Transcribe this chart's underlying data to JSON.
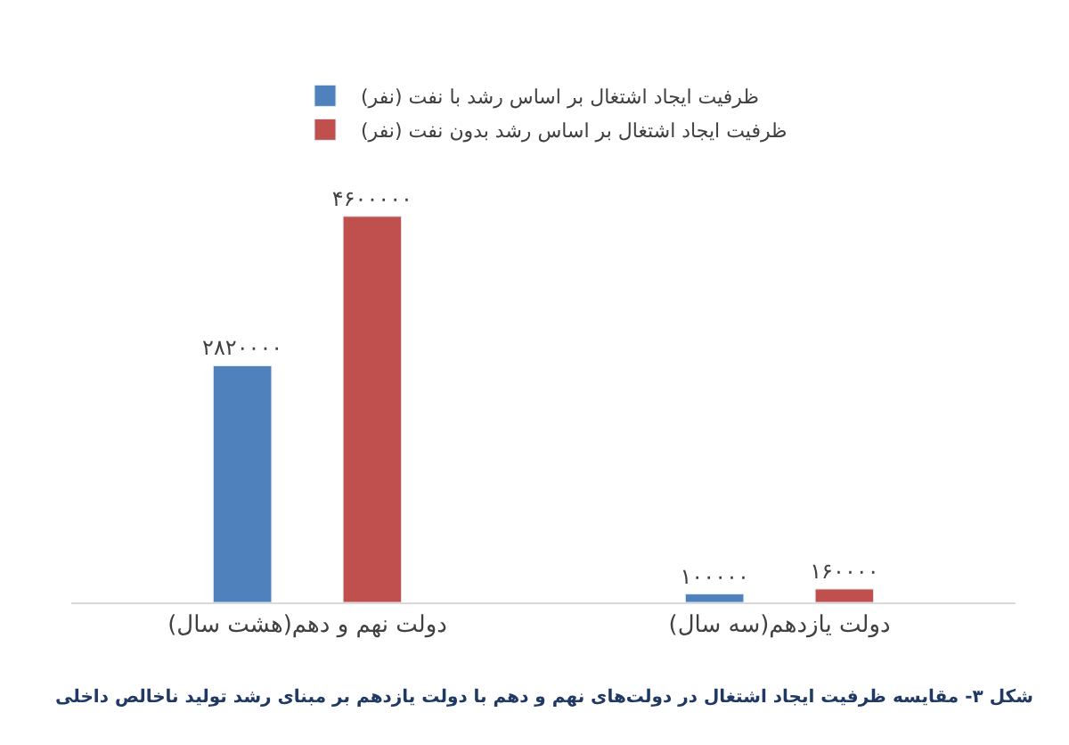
{
  "chart_data": {
    "type": "bar",
    "categories": [
      "دولت نهم و دهم(هشت سال)",
      "دولت یازدهم(سه سال)"
    ],
    "series": [
      {
        "name": "ظرفیت ایجاد اشتغال بر اساس رشد با نفت (نفر)",
        "color": "#4f81bd",
        "values": [
          2820000,
          100000
        ],
        "value_labels": [
          "۲۸۲۰۰۰۰",
          "۱۰۰۰۰۰"
        ]
      },
      {
        "name": "ظرفیت ایجاد اشتغال بر اساس رشد بدون نفت (نفر)",
        "color": "#c0504d",
        "values": [
          4600000,
          160000
        ],
        "value_labels": [
          "۴۶۰۰۰۰۰",
          "۱۶۰۰۰۰"
        ]
      }
    ],
    "legend": "top",
    "annotations": [
      "شکل ۳- مقایسه ظرفیت ایجاد اشتغال در دولت‌های نهم و دهم با دولت یازدهم بر مبنای رشد تولید ناخالص داخلی"
    ]
  }
}
